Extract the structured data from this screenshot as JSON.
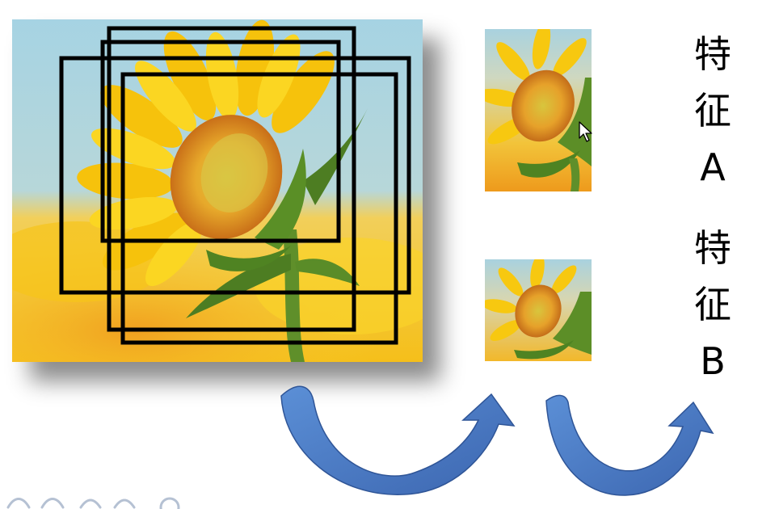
{
  "main_image": {
    "subject": "sunflower",
    "sky_color": "#9fcfe0",
    "petal_color": "#f7cf12",
    "field_color": "#f4b812"
  },
  "crop_frame_color": "#000000",
  "features": [
    {
      "chars": [
        "特",
        "征"
      ],
      "letter": "A"
    },
    {
      "chars": [
        "特",
        "征"
      ],
      "letter": "B"
    }
  ],
  "arrow_color": "#4472c4",
  "icons": [
    "mouse-cursor-icon",
    "watermark-logo"
  ]
}
